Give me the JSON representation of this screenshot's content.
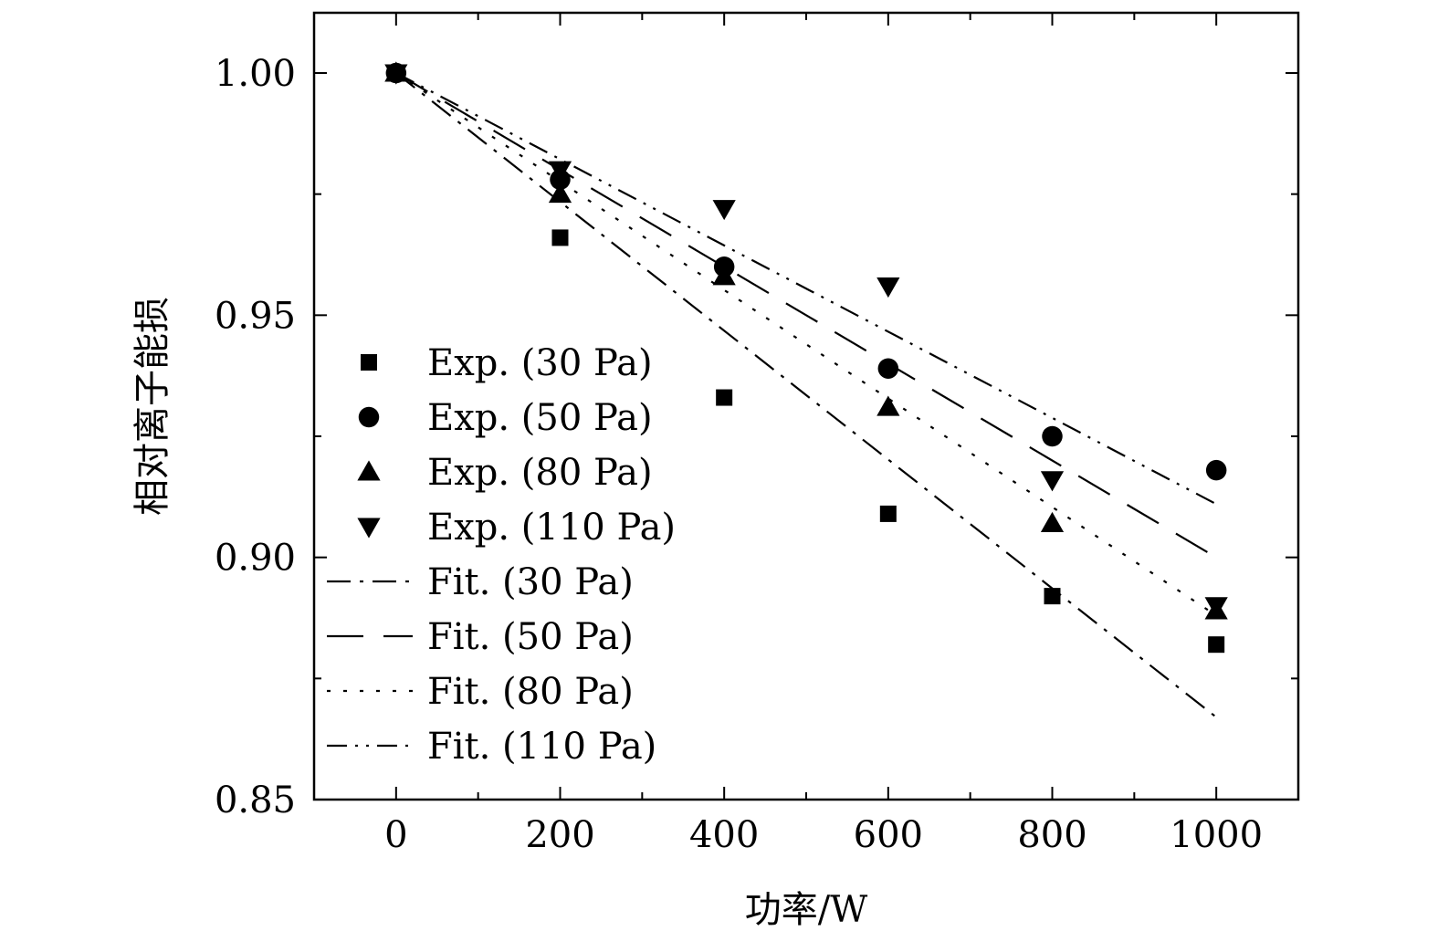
{
  "chart_data": {
    "type": "scatter",
    "title": "",
    "xlabel": "功率/W",
    "ylabel": "相对离子能损",
    "xlim": [
      -100,
      1100
    ],
    "ylim": [
      0.85,
      1.012
    ],
    "xticks": [
      0,
      200,
      400,
      600,
      800,
      1000
    ],
    "xtick_labels": [
      "0",
      "200",
      "400",
      "600",
      "800",
      "1000"
    ],
    "yticks": [
      0.85,
      0.9,
      0.95,
      1.0
    ],
    "ytick_labels": [
      "0.85",
      "0.90",
      "0.95",
      "1.00"
    ],
    "grid": false,
    "legend_position": "left",
    "series": [
      {
        "name": "Exp. (30 Pa)",
        "kind": "scatter",
        "marker": "square",
        "x": [
          0,
          200,
          400,
          600,
          800,
          1000
        ],
        "y": [
          1.0,
          0.966,
          0.933,
          0.909,
          0.892,
          0.882
        ]
      },
      {
        "name": "Exp. (50 Pa)",
        "kind": "scatter",
        "marker": "circle",
        "x": [
          0,
          200,
          400,
          600,
          800,
          1000
        ],
        "y": [
          1.0,
          0.978,
          0.96,
          0.939,
          0.925,
          0.918
        ]
      },
      {
        "name": "Exp. (80 Pa)",
        "kind": "scatter",
        "marker": "triangle-up",
        "x": [
          0,
          200,
          400,
          600,
          800,
          1000
        ],
        "y": [
          1.0,
          0.975,
          0.958,
          0.931,
          0.907,
          0.889
        ]
      },
      {
        "name": "Exp. (110 Pa)",
        "kind": "scatter",
        "marker": "triangle-down",
        "x": [
          0,
          200,
          400,
          600,
          800,
          1000
        ],
        "y": [
          1.0,
          0.98,
          0.972,
          0.956,
          0.916,
          0.89
        ]
      },
      {
        "name": "Fit. (30 Pa)",
        "kind": "line",
        "dash": "dash-dot",
        "x": [
          0,
          1000
        ],
        "y": [
          1.0,
          0.867
        ]
      },
      {
        "name": "Fit. (50 Pa)",
        "kind": "line",
        "dash": "dash",
        "x": [
          0,
          1000
        ],
        "y": [
          1.0,
          0.9
        ]
      },
      {
        "name": "Fit. (80 Pa)",
        "kind": "line",
        "dash": "dot",
        "x": [
          0,
          1000
        ],
        "y": [
          1.0,
          0.888
        ]
      },
      {
        "name": "Fit. (110 Pa)",
        "kind": "line",
        "dash": "dash-dot-dot",
        "x": [
          0,
          1000
        ],
        "y": [
          1.0,
          0.911
        ]
      }
    ]
  }
}
